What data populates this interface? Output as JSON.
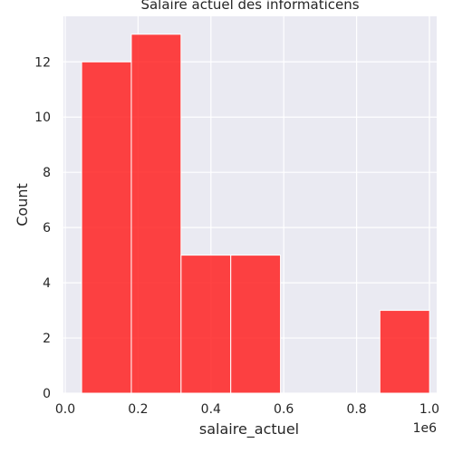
{
  "chart_data": {
    "type": "bar",
    "title": "Salaire actuel des informaticens",
    "xlabel": "salaire_actuel",
    "ylabel": "Count",
    "x_offset_label": "1e6",
    "xlim": [
      -0.005,
      1.02
    ],
    "ylim": [
      0,
      13.65
    ],
    "xticks": [
      0.0,
      0.2,
      0.4,
      0.6,
      0.8,
      1.0
    ],
    "xtick_labels": [
      "0.0",
      "0.2",
      "0.4",
      "0.6",
      "0.8",
      "1.0"
    ],
    "yticks": [
      0,
      2,
      4,
      6,
      8,
      10,
      12
    ],
    "ytick_labels": [
      "0",
      "2",
      "4",
      "6",
      "8",
      "10",
      "12"
    ],
    "bins": [
      {
        "x0": 0.045,
        "x1": 0.1815,
        "count": 12
      },
      {
        "x0": 0.1815,
        "x1": 0.318,
        "count": 13
      },
      {
        "x0": 0.318,
        "x1": 0.4545,
        "count": 5
      },
      {
        "x0": 0.4545,
        "x1": 0.591,
        "count": 5
      },
      {
        "x0": 0.591,
        "x1": 0.7275,
        "count": 0
      },
      {
        "x0": 0.7275,
        "x1": 0.864,
        "count": 0
      },
      {
        "x0": 0.864,
        "x1": 1.0005,
        "count": 3
      }
    ],
    "grid": true,
    "colors": {
      "background": "#eaeaf2",
      "bar_fill": "#ff2222",
      "bar_fill_opacity": 0.85,
      "bar_edge": "#ffffff",
      "grid": "#ffffff"
    }
  }
}
